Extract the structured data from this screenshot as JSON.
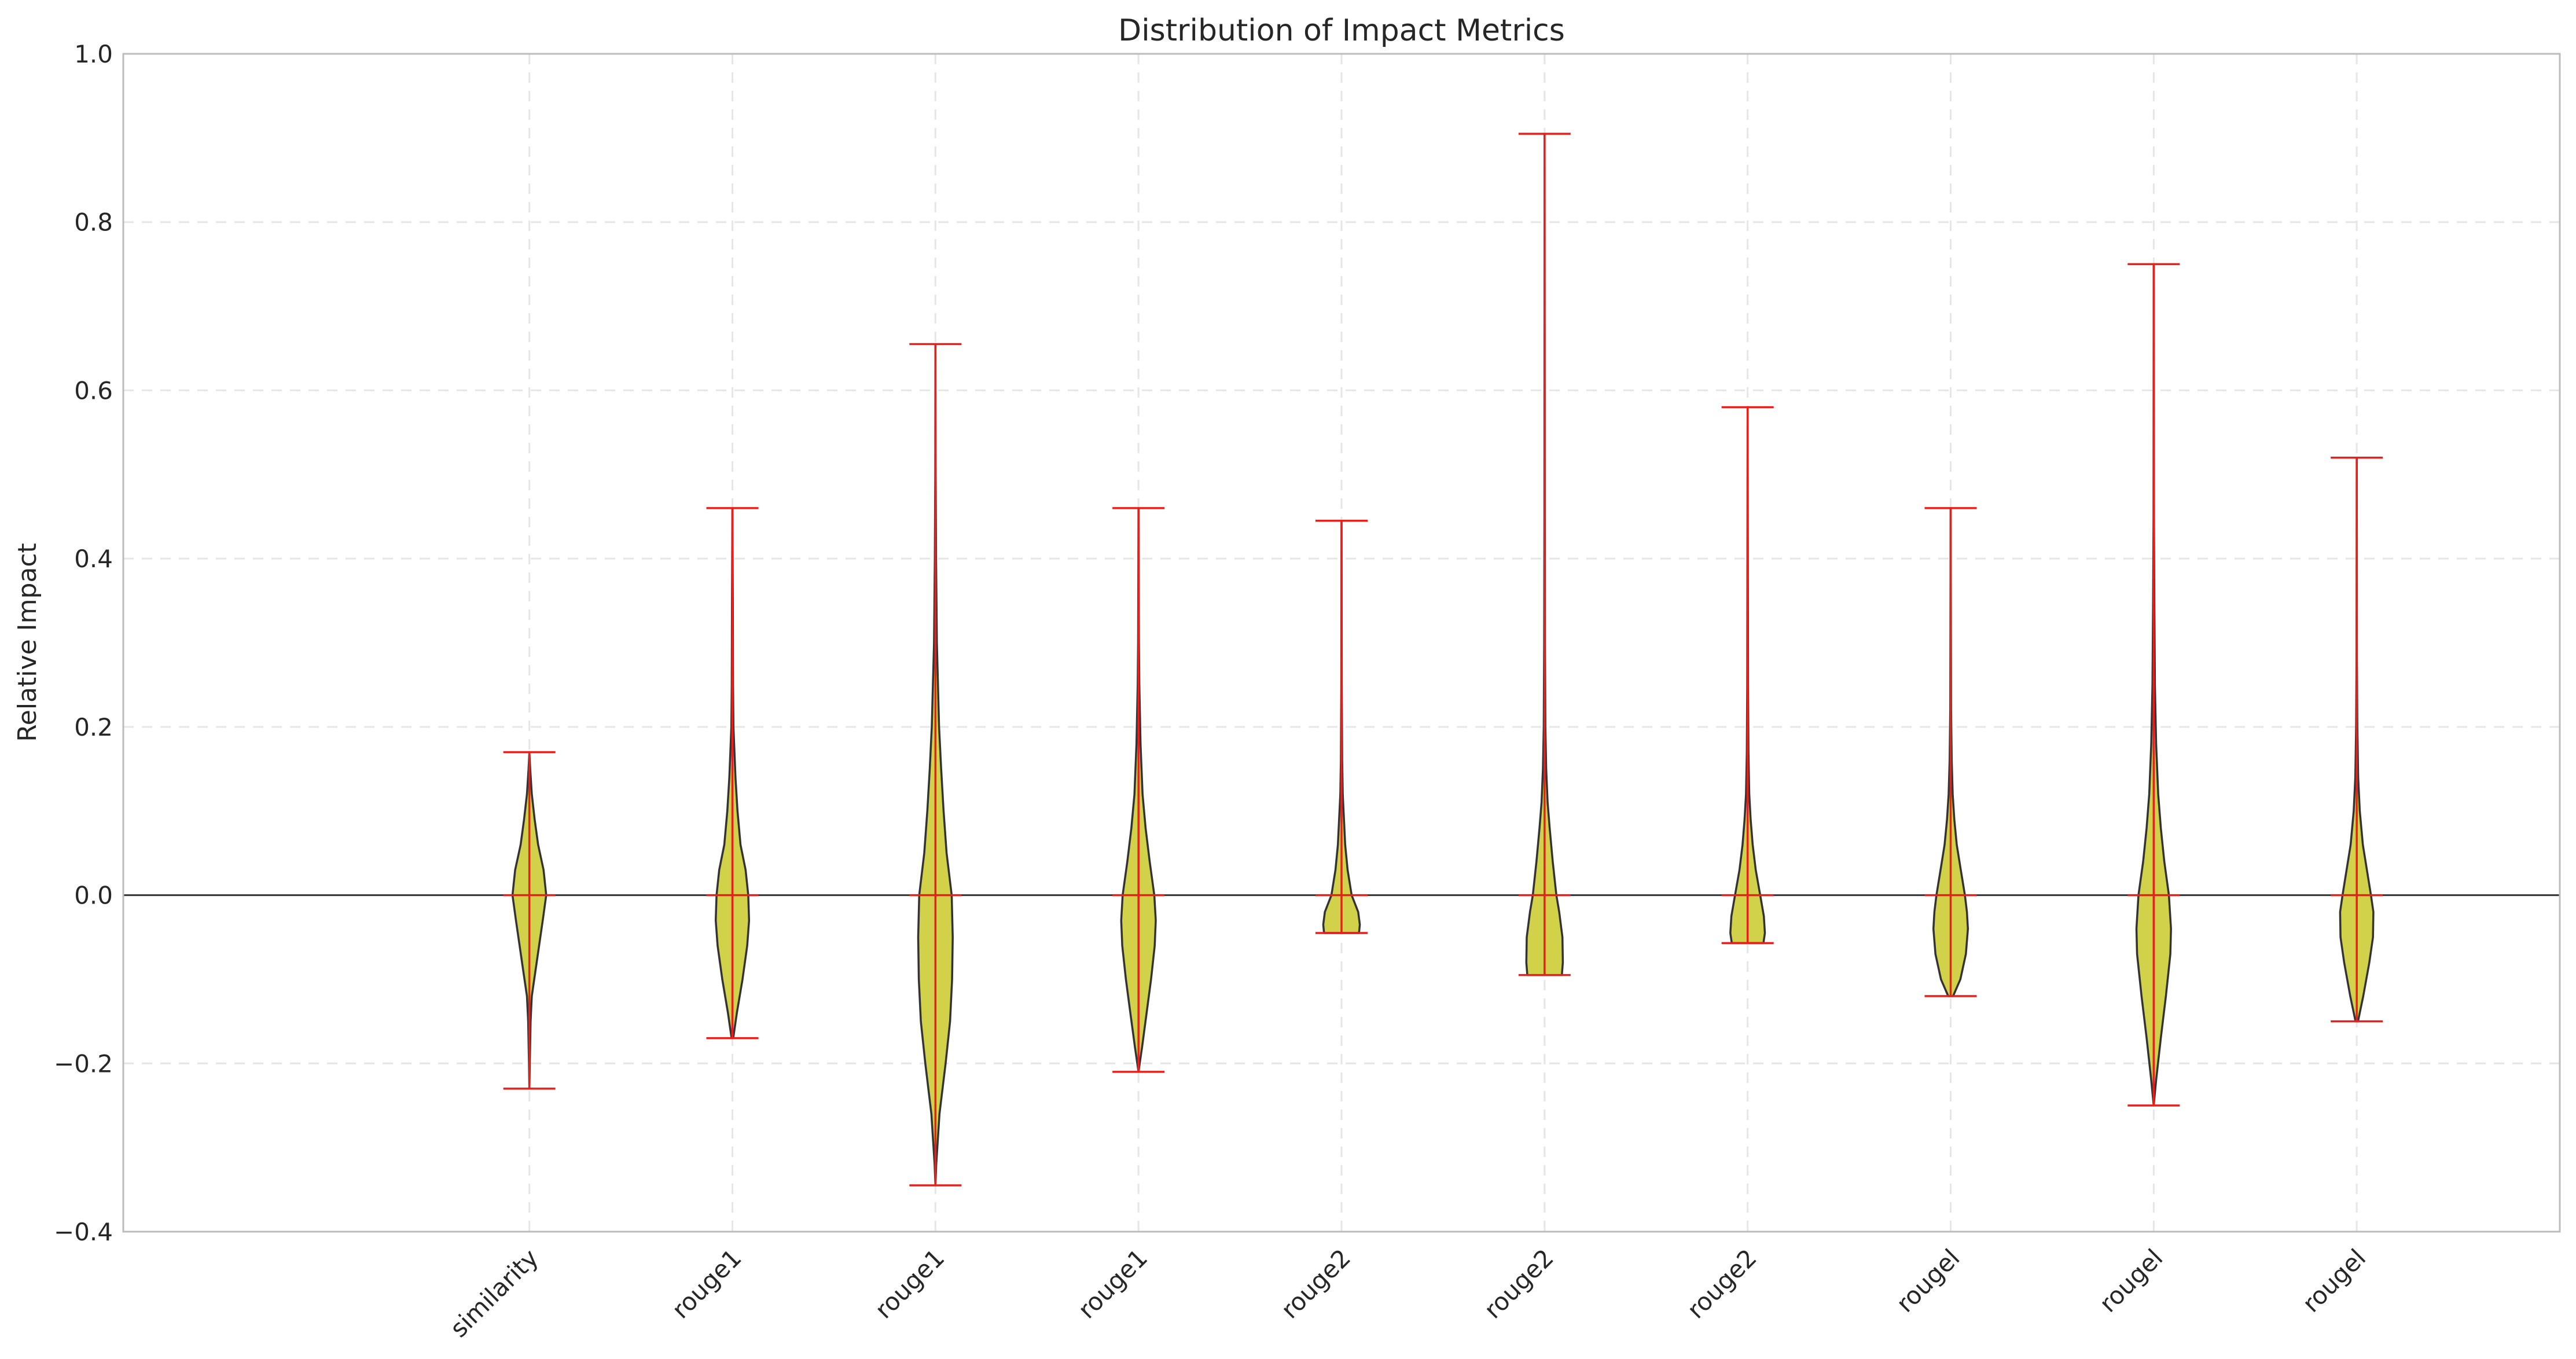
{
  "chart_data": {
    "type": "violin",
    "title": "Distribution of Impact Metrics",
    "xlabel": "",
    "ylabel": "Relative Impact",
    "ylim": [
      -0.4,
      1.0
    ],
    "yticks": [
      -0.4,
      -0.2,
      0.0,
      0.2,
      0.4,
      0.6,
      0.8,
      1.0
    ],
    "ytick_labels": [
      "−0.4",
      "−0.2",
      "0.0",
      "0.2",
      "0.4",
      "0.6",
      "0.8",
      "1.0"
    ],
    "grid": true,
    "zero_line": true,
    "fill_color": "#d2d24a",
    "edge_color": "#333333",
    "whisker_color": "#e8201c",
    "categories": [
      "similarity",
      "rouge1",
      "rouge1",
      "rouge1",
      "rouge2",
      "rouge2",
      "rouge2",
      "rougel",
      "rougel",
      "rougel"
    ],
    "x_positions": [
      3,
      4,
      5,
      6,
      7,
      8,
      9,
      10,
      11,
      12
    ],
    "xlim": [
      1,
      13
    ],
    "series": [
      {
        "min": -0.23,
        "max": 0.17,
        "median": 0.0,
        "profile": [
          [
            -0.23,
            0.0
          ],
          [
            -0.2,
            0.002
          ],
          [
            -0.15,
            0.006
          ],
          [
            -0.12,
            0.012
          ],
          [
            -0.09,
            0.03
          ],
          [
            -0.06,
            0.048
          ],
          [
            -0.03,
            0.066
          ],
          [
            0.0,
            0.083
          ],
          [
            0.03,
            0.07
          ],
          [
            0.06,
            0.043
          ],
          [
            0.09,
            0.026
          ],
          [
            0.12,
            0.012
          ],
          [
            0.15,
            0.004
          ],
          [
            0.17,
            0.0
          ]
        ]
      },
      {
        "min": -0.17,
        "max": 0.46,
        "median": 0.0,
        "profile": [
          [
            -0.17,
            0.004
          ],
          [
            -0.14,
            0.022
          ],
          [
            -0.1,
            0.05
          ],
          [
            -0.06,
            0.073
          ],
          [
            -0.03,
            0.082
          ],
          [
            0.0,
            0.078
          ],
          [
            0.03,
            0.065
          ],
          [
            0.06,
            0.04
          ],
          [
            0.1,
            0.025
          ],
          [
            0.14,
            0.015
          ],
          [
            0.2,
            0.005
          ],
          [
            0.25,
            0.003
          ],
          [
            0.35,
            0.002
          ],
          [
            0.46,
            0.0
          ]
        ]
      },
      {
        "min": -0.345,
        "max": 0.655,
        "median": 0.0,
        "profile": [
          [
            -0.345,
            0.0
          ],
          [
            -0.32,
            0.004
          ],
          [
            -0.26,
            0.02
          ],
          [
            -0.2,
            0.05
          ],
          [
            -0.15,
            0.072
          ],
          [
            -0.1,
            0.082
          ],
          [
            -0.05,
            0.085
          ],
          [
            0.0,
            0.08
          ],
          [
            0.05,
            0.055
          ],
          [
            0.1,
            0.04
          ],
          [
            0.15,
            0.028
          ],
          [
            0.2,
            0.018
          ],
          [
            0.3,
            0.007
          ],
          [
            0.4,
            0.003
          ],
          [
            0.5,
            0.001
          ],
          [
            0.655,
            0.0
          ]
        ]
      },
      {
        "min": -0.21,
        "max": 0.46,
        "median": 0.0,
        "profile": [
          [
            -0.21,
            0.0
          ],
          [
            -0.18,
            0.018
          ],
          [
            -0.14,
            0.04
          ],
          [
            -0.1,
            0.062
          ],
          [
            -0.06,
            0.08
          ],
          [
            -0.03,
            0.085
          ],
          [
            0.0,
            0.078
          ],
          [
            0.04,
            0.055
          ],
          [
            0.08,
            0.035
          ],
          [
            0.12,
            0.02
          ],
          [
            0.18,
            0.01
          ],
          [
            0.25,
            0.004
          ],
          [
            0.3,
            0.002
          ],
          [
            0.46,
            0.0
          ]
        ]
      },
      {
        "min": -0.045,
        "max": 0.445,
        "median": 0.0,
        "profile": [
          [
            -0.045,
            0.086
          ],
          [
            -0.035,
            0.09
          ],
          [
            -0.02,
            0.082
          ],
          [
            0.0,
            0.05
          ],
          [
            0.03,
            0.03
          ],
          [
            0.06,
            0.018
          ],
          [
            0.09,
            0.012
          ],
          [
            0.12,
            0.006
          ],
          [
            0.16,
            0.003
          ],
          [
            0.25,
            0.001
          ],
          [
            0.445,
            0.0
          ]
        ]
      },
      {
        "min": -0.095,
        "max": 0.905,
        "median": 0.0,
        "profile": [
          [
            -0.095,
            0.085
          ],
          [
            -0.08,
            0.09
          ],
          [
            -0.05,
            0.088
          ],
          [
            -0.02,
            0.072
          ],
          [
            0.0,
            0.058
          ],
          [
            0.04,
            0.04
          ],
          [
            0.08,
            0.025
          ],
          [
            0.11,
            0.015
          ],
          [
            0.15,
            0.008
          ],
          [
            0.2,
            0.004
          ],
          [
            0.3,
            0.002
          ],
          [
            0.45,
            0.001
          ],
          [
            0.905,
            0.0
          ]
        ]
      },
      {
        "min": -0.057,
        "max": 0.58,
        "median": 0.0,
        "profile": [
          [
            -0.057,
            0.078
          ],
          [
            -0.045,
            0.085
          ],
          [
            -0.025,
            0.08
          ],
          [
            0.0,
            0.062
          ],
          [
            0.03,
            0.04
          ],
          [
            0.06,
            0.025
          ],
          [
            0.09,
            0.015
          ],
          [
            0.12,
            0.008
          ],
          [
            0.17,
            0.004
          ],
          [
            0.25,
            0.002
          ],
          [
            0.58,
            0.0
          ]
        ]
      },
      {
        "min": -0.12,
        "max": 0.46,
        "median": 0.0,
        "profile": [
          [
            -0.12,
            0.012
          ],
          [
            -0.1,
            0.048
          ],
          [
            -0.07,
            0.075
          ],
          [
            -0.04,
            0.085
          ],
          [
            -0.02,
            0.08
          ],
          [
            0.0,
            0.07
          ],
          [
            0.03,
            0.05
          ],
          [
            0.06,
            0.03
          ],
          [
            0.09,
            0.018
          ],
          [
            0.12,
            0.01
          ],
          [
            0.16,
            0.005
          ],
          [
            0.22,
            0.002
          ],
          [
            0.46,
            0.0
          ]
        ]
      },
      {
        "min": -0.25,
        "max": 0.75,
        "median": 0.0,
        "profile": [
          [
            -0.25,
            0.0
          ],
          [
            -0.22,
            0.012
          ],
          [
            -0.17,
            0.035
          ],
          [
            -0.12,
            0.06
          ],
          [
            -0.07,
            0.082
          ],
          [
            -0.04,
            0.085
          ],
          [
            0.0,
            0.075
          ],
          [
            0.04,
            0.052
          ],
          [
            0.08,
            0.035
          ],
          [
            0.12,
            0.022
          ],
          [
            0.18,
            0.012
          ],
          [
            0.25,
            0.006
          ],
          [
            0.35,
            0.003
          ],
          [
            0.45,
            0.001
          ],
          [
            0.75,
            0.0
          ]
        ]
      },
      {
        "min": -0.15,
        "max": 0.52,
        "median": 0.0,
        "profile": [
          [
            -0.15,
            0.006
          ],
          [
            -0.12,
            0.032
          ],
          [
            -0.08,
            0.062
          ],
          [
            -0.05,
            0.08
          ],
          [
            -0.02,
            0.082
          ],
          [
            0.0,
            0.07
          ],
          [
            0.03,
            0.05
          ],
          [
            0.06,
            0.03
          ],
          [
            0.1,
            0.015
          ],
          [
            0.14,
            0.007
          ],
          [
            0.2,
            0.003
          ],
          [
            0.28,
            0.001
          ],
          [
            0.52,
            0.0
          ]
        ]
      }
    ]
  }
}
